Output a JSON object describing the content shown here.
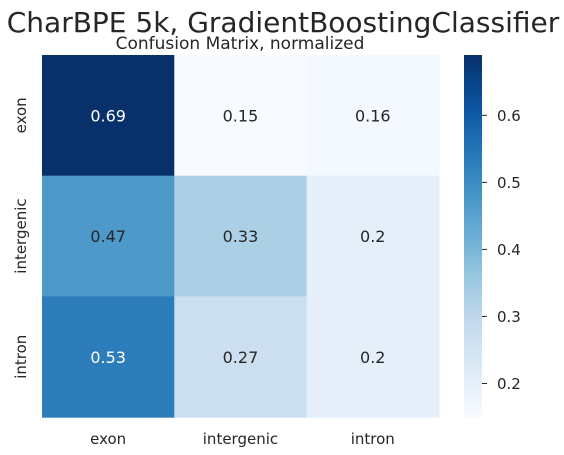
{
  "chart_data": {
    "type": "heatmap",
    "title": "CharBPE 5k, GradientBoostingClassifier",
    "subtitle": "Confusion Matrix, normalized",
    "xlabel": "",
    "ylabel": "",
    "row_labels": [
      "exon",
      "intergenic",
      "intron"
    ],
    "col_labels": [
      "exon",
      "intergenic",
      "intron"
    ],
    "values": [
      [
        0.69,
        0.15,
        0.16
      ],
      [
        0.47,
        0.33,
        0.2
      ],
      [
        0.53,
        0.27,
        0.2
      ]
    ],
    "cell_labels": [
      [
        "0.69",
        "0.15",
        "0.16"
      ],
      [
        "0.47",
        "0.33",
        "0.2"
      ],
      [
        "0.53",
        "0.27",
        "0.2"
      ]
    ],
    "colormap": "Blues",
    "colorbar": {
      "vmin": 0.15,
      "vmax": 0.69,
      "ticks": [
        0.2,
        0.3,
        0.4,
        0.5,
        0.6
      ],
      "tick_labels": [
        "0.2",
        "0.3",
        "0.4",
        "0.5",
        "0.6"
      ]
    },
    "grid": false
  }
}
